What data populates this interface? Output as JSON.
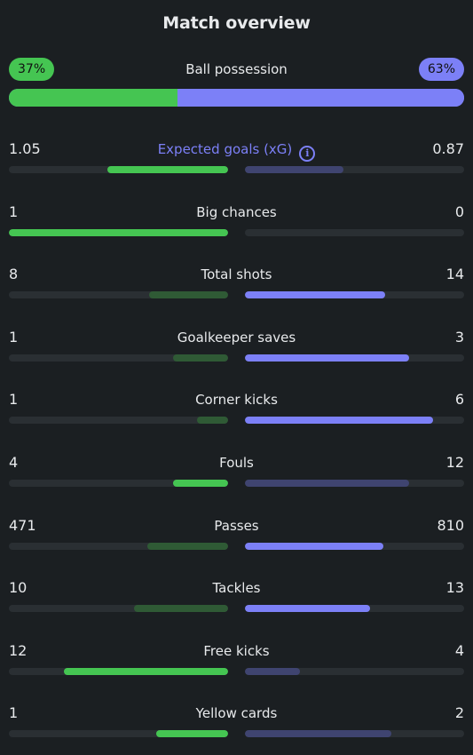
{
  "title": "Match overview",
  "possession": {
    "label": "Ball possession",
    "home": "37%",
    "away": "63%",
    "home_fraction": 0.37,
    "away_fraction": 0.63,
    "home_color": "#45c552",
    "away_color": "#7c80f7"
  },
  "stats": [
    {
      "label": "Expected goals (xG)",
      "home": "1.05",
      "away": "0.87",
      "home_fill": 0.55,
      "away_fill": 0.45,
      "home_strong": true,
      "away_strong": false,
      "has_info": true
    },
    {
      "label": "Big chances",
      "home": "1",
      "away": "0",
      "home_fill": 1.0,
      "away_fill": 0.0,
      "home_strong": true,
      "away_strong": false
    },
    {
      "label": "Total shots",
      "home": "8",
      "away": "14",
      "home_fill": 0.36,
      "away_fill": 0.64,
      "home_strong": false,
      "away_strong": true
    },
    {
      "label": "Goalkeeper saves",
      "home": "1",
      "away": "3",
      "home_fill": 0.25,
      "away_fill": 0.75,
      "home_strong": false,
      "away_strong": true
    },
    {
      "label": "Corner kicks",
      "home": "1",
      "away": "6",
      "home_fill": 0.14,
      "away_fill": 0.86,
      "home_strong": false,
      "away_strong": true
    },
    {
      "label": "Fouls",
      "home": "4",
      "away": "12",
      "home_fill": 0.25,
      "away_fill": 0.75,
      "home_strong": true,
      "away_strong": false
    },
    {
      "label": "Passes",
      "home": "471",
      "away": "810",
      "home_fill": 0.37,
      "away_fill": 0.63,
      "home_strong": false,
      "away_strong": true
    },
    {
      "label": "Tackles",
      "home": "10",
      "away": "13",
      "home_fill": 0.43,
      "away_fill": 0.57,
      "home_strong": false,
      "away_strong": true
    },
    {
      "label": "Free kicks",
      "home": "12",
      "away": "4",
      "home_fill": 0.75,
      "away_fill": 0.25,
      "home_strong": true,
      "away_strong": false
    },
    {
      "label": "Yellow cards",
      "home": "1",
      "away": "2",
      "home_fill": 0.33,
      "away_fill": 0.67,
      "home_strong": true,
      "away_strong": false
    }
  ]
}
